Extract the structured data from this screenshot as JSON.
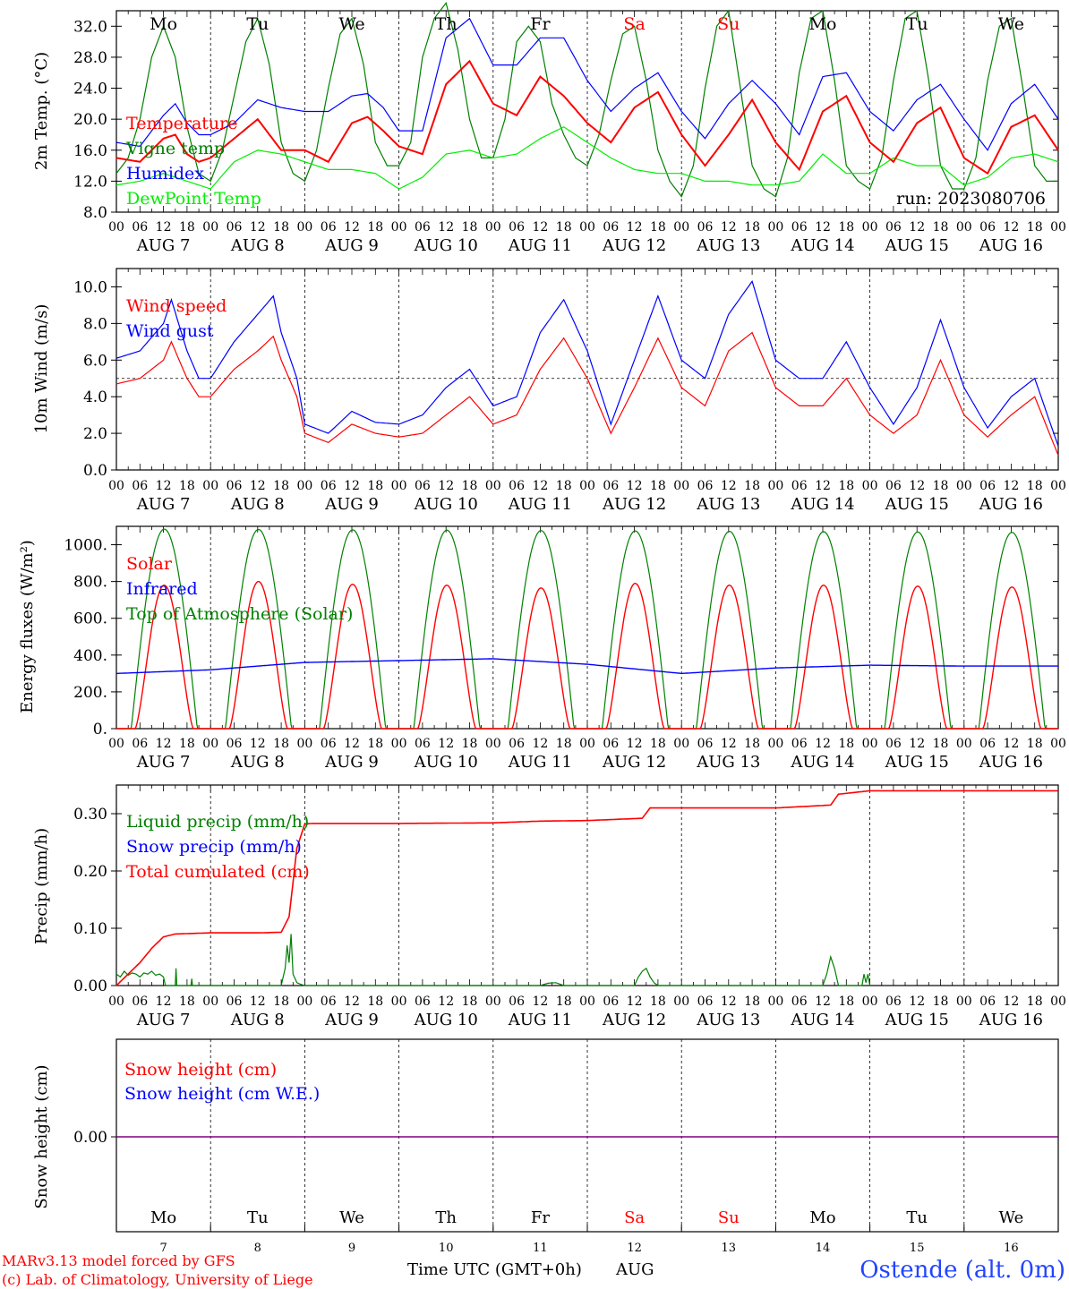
{
  "chart_data": [
    {
      "type": "line",
      "id": "temp",
      "ylabel": "2m Temp. (°C)",
      "ylim": [
        8,
        34
      ],
      "yticks": [
        "8.0",
        "12.0",
        "16.0",
        "20.0",
        "24.0",
        "28.0",
        "32.0"
      ],
      "xlim_hours": [
        0,
        240
      ],
      "annotation": "run: 2023080706",
      "legend": [
        {
          "name": "Temperature",
          "color": "#ff0000"
        },
        {
          "name": "Vigne temp",
          "color": "#008000"
        },
        {
          "name": "Humidex",
          "color": "#0000ff"
        },
        {
          "name": "DewPoint Temp",
          "color": "#00ee00"
        }
      ],
      "series": [
        {
          "name": "Temperature",
          "color": "#ff0000",
          "x": [
            0,
            6,
            12,
            15,
            18,
            21,
            24,
            30,
            36,
            42,
            48,
            54,
            60,
            64,
            68,
            72,
            78,
            84,
            90,
            96,
            102,
            108,
            114,
            120,
            126,
            132,
            138,
            144,
            150,
            156,
            162,
            168,
            174,
            180,
            186,
            192,
            198,
            204,
            210,
            216,
            222,
            228,
            234,
            240
          ],
          "y": [
            15.0,
            14.5,
            17.5,
            18,
            15.5,
            14.5,
            15.0,
            17.5,
            20.0,
            16.0,
            16.0,
            14.5,
            19.5,
            20.3,
            18.5,
            16.5,
            15.5,
            24.5,
            27.5,
            22.0,
            20.5,
            25.5,
            23.0,
            19.5,
            17.0,
            21.5,
            23.5,
            18.0,
            14.0,
            18.0,
            22.5,
            17.0,
            13.5,
            21.0,
            23.0,
            17.0,
            14.5,
            19.5,
            21.5,
            15.0,
            13.0,
            19.0,
            20.5,
            16.0
          ]
        },
        {
          "name": "Vigne temp",
          "color": "#008000",
          "x": [
            0,
            3,
            6,
            9,
            12,
            15,
            18,
            21,
            24,
            27,
            30,
            33,
            36,
            39,
            42,
            45,
            48,
            51,
            54,
            57,
            60,
            63,
            66,
            69,
            72,
            75,
            78,
            81,
            84,
            87,
            90,
            93,
            96,
            99,
            102,
            105,
            108,
            111,
            114,
            117,
            120,
            123,
            126,
            129,
            132,
            135,
            138,
            141,
            144,
            147,
            150,
            153,
            156,
            159,
            162,
            165,
            168,
            171,
            174,
            177,
            180,
            183,
            186,
            189,
            192,
            195,
            198,
            201,
            204,
            207,
            210,
            213,
            216,
            219,
            222,
            225,
            228,
            231,
            234,
            237,
            240
          ],
          "y": [
            13,
            15,
            20,
            28,
            32,
            28,
            19,
            13,
            12,
            16,
            23,
            30,
            33,
            27,
            17,
            13,
            12,
            16,
            24,
            31,
            33,
            27,
            17,
            14,
            14,
            17,
            28,
            33,
            35,
            29,
            20,
            15,
            15,
            20,
            30,
            32,
            30,
            22,
            18,
            15,
            14,
            18,
            25,
            31,
            32,
            25,
            16,
            12,
            10,
            14,
            24,
            32,
            34,
            24,
            14,
            11,
            10,
            15,
            26,
            33,
            34,
            25,
            14,
            12,
            11,
            15,
            25,
            33,
            34,
            25,
            14,
            11,
            11,
            15,
            25,
            32,
            33,
            24,
            14,
            12,
            12
          ]
        },
        {
          "name": "Humidex",
          "color": "#0000ff",
          "x": [
            0,
            6,
            12,
            15,
            18,
            21,
            24,
            30,
            36,
            42,
            48,
            54,
            60,
            64,
            68,
            72,
            78,
            84,
            90,
            96,
            102,
            108,
            114,
            120,
            126,
            132,
            138,
            144,
            150,
            156,
            162,
            168,
            174,
            180,
            186,
            192,
            198,
            204,
            210,
            216,
            222,
            228,
            234,
            240
          ],
          "y": [
            17.0,
            16.5,
            20.5,
            22.0,
            19.5,
            18.0,
            18.0,
            19.5,
            22.5,
            21.5,
            21.0,
            21.0,
            23.0,
            23.3,
            21.5,
            18.5,
            18.5,
            30.5,
            33.0,
            27.0,
            27.0,
            30.5,
            30.5,
            25.0,
            21.0,
            24.0,
            26.0,
            21.0,
            17.5,
            22.0,
            25.0,
            22.0,
            18.0,
            25.5,
            26.0,
            21.0,
            18.5,
            22.5,
            24.5,
            20.0,
            16.0,
            22.0,
            24.5,
            20.0
          ]
        },
        {
          "name": "DewPoint Temp",
          "color": "#00ee00",
          "x": [
            0,
            6,
            12,
            18,
            24,
            30,
            36,
            42,
            48,
            54,
            60,
            66,
            72,
            78,
            84,
            90,
            96,
            102,
            108,
            114,
            120,
            126,
            132,
            138,
            144,
            150,
            156,
            162,
            168,
            174,
            180,
            186,
            192,
            198,
            204,
            210,
            216,
            222,
            228,
            234,
            240
          ],
          "y": [
            11.5,
            12.0,
            13.0,
            12.0,
            11.0,
            14.5,
            16.0,
            15.5,
            14.5,
            13.5,
            13.5,
            13.0,
            11.0,
            12.5,
            15.5,
            16.0,
            15.0,
            15.5,
            17.5,
            19.0,
            17.0,
            15.0,
            13.5,
            13.0,
            13.0,
            12.0,
            12.0,
            11.5,
            11.5,
            12.0,
            15.5,
            13.0,
            13.0,
            15.0,
            14.0,
            14.0,
            11.5,
            12.5,
            15.0,
            15.5,
            14.5
          ]
        }
      ]
    },
    {
      "type": "line",
      "id": "wind",
      "ylabel": "10m Wind (m/s)",
      "ylim": [
        0,
        11
      ],
      "yticks": [
        "0.0",
        "2.0",
        "4.0",
        "6.0",
        "8.0",
        "10.0"
      ],
      "reference_line": 5.0,
      "xlim_hours": [
        0,
        240
      ],
      "legend": [
        {
          "name": "Wind speed",
          "color": "#ff0000"
        },
        {
          "name": "Wind gust",
          "color": "#0000ff"
        }
      ],
      "series": [
        {
          "name": "Wind speed",
          "color": "#ff0000",
          "x": [
            0,
            6,
            12,
            14,
            18,
            21,
            24,
            30,
            36,
            40,
            42,
            46,
            48,
            54,
            60,
            66,
            72,
            78,
            84,
            90,
            96,
            102,
            108,
            114,
            120,
            126,
            132,
            138,
            144,
            150,
            156,
            162,
            168,
            174,
            180,
            186,
            192,
            198,
            204,
            210,
            216,
            222,
            228,
            234,
            240
          ],
          "y": [
            4.7,
            5.0,
            6.0,
            7.0,
            5.0,
            4.0,
            4.0,
            5.5,
            6.5,
            7.3,
            6.0,
            4.0,
            2.0,
            1.5,
            2.5,
            2.0,
            1.8,
            2.0,
            3.0,
            4.0,
            2.5,
            3.0,
            5.5,
            7.2,
            5.0,
            2.0,
            4.5,
            7.2,
            4.5,
            3.5,
            6.5,
            7.5,
            4.5,
            3.5,
            3.5,
            5.0,
            3.0,
            2.0,
            3.0,
            6.0,
            3.0,
            1.8,
            3.0,
            4.0,
            0.8
          ]
        },
        {
          "name": "Wind gust",
          "color": "#0000ff",
          "x": [
            0,
            6,
            12,
            14,
            18,
            21,
            24,
            30,
            36,
            40,
            42,
            46,
            48,
            54,
            60,
            66,
            72,
            78,
            84,
            90,
            96,
            102,
            108,
            114,
            120,
            126,
            132,
            138,
            144,
            150,
            156,
            162,
            168,
            174,
            180,
            186,
            192,
            198,
            204,
            210,
            216,
            222,
            228,
            234,
            240
          ],
          "y": [
            6.1,
            6.5,
            8.0,
            9.3,
            6.5,
            5.0,
            5.0,
            7.0,
            8.5,
            9.5,
            7.5,
            5.0,
            2.5,
            2.0,
            3.2,
            2.6,
            2.5,
            3.0,
            4.5,
            5.5,
            3.5,
            4.0,
            7.5,
            9.3,
            6.5,
            2.5,
            6.0,
            9.5,
            6.0,
            5.0,
            8.5,
            10.3,
            6.0,
            5.0,
            5.0,
            7.0,
            4.5,
            2.5,
            4.5,
            8.2,
            4.5,
            2.3,
            4.0,
            5.0,
            1.3
          ]
        }
      ]
    },
    {
      "type": "line",
      "id": "flux",
      "ylabel": "Energy fluxes (W/m²)",
      "ylim": [
        0,
        1100
      ],
      "yticks": [
        "0.",
        "200.",
        "400.",
        "600.",
        "800.",
        "1000."
      ],
      "xlim_hours": [
        0,
        240
      ],
      "legend": [
        {
          "name": "Solar",
          "color": "#ff0000"
        },
        {
          "name": "Infrared",
          "color": "#0000ff"
        },
        {
          "name": "Top of Atmosphere (Solar)",
          "color": "#008000"
        }
      ],
      "daily_cycle": {
        "solar_peak": [
          780,
          800,
          785,
          780,
          765,
          790,
          780,
          780,
          775,
          770
        ],
        "toa_peak": [
          1085,
          1083,
          1081,
          1079,
          1077,
          1075,
          1073,
          1071,
          1069,
          1067
        ],
        "infrared": [
          300,
          320,
          360,
          370,
          380,
          350,
          300,
          330,
          345,
          340
        ]
      }
    },
    {
      "type": "line",
      "id": "precip",
      "ylabel": "Precip (mm/h)",
      "ylim": [
        0,
        0.35
      ],
      "yticks": [
        "0.00",
        "0.10",
        "0.20",
        "0.30"
      ],
      "xlim_hours": [
        0,
        240
      ],
      "legend": [
        {
          "name": "Liquid precip (mm/h)",
          "color": "#008000"
        },
        {
          "name": "Snow precip (mm/h)",
          "color": "#0000ff"
        },
        {
          "name": "Total cumulated (cm)",
          "color": "#ff0000"
        }
      ],
      "series": [
        {
          "name": "Total cumulated (cm)",
          "color": "#ff0000",
          "x": [
            0,
            3,
            6,
            9,
            12,
            15,
            24,
            36,
            42,
            44,
            46,
            48,
            50,
            72,
            96,
            108,
            120,
            134,
            136,
            144,
            168,
            182,
            184,
            192,
            216,
            240
          ],
          "y": [
            0.0,
            0.02,
            0.04,
            0.065,
            0.085,
            0.09,
            0.092,
            0.092,
            0.093,
            0.12,
            0.24,
            0.282,
            0.283,
            0.283,
            0.284,
            0.287,
            0.288,
            0.292,
            0.31,
            0.31,
            0.31,
            0.315,
            0.334,
            0.34,
            0.34,
            0.34
          ]
        },
        {
          "name": "Liquid precip (mm/h)",
          "color": "#008000",
          "x": [
            0,
            1,
            2,
            3,
            4,
            5,
            6,
            7,
            8,
            9,
            10,
            11,
            12,
            12.5,
            13,
            15,
            15.2,
            15.4,
            19,
            19.2,
            19.4,
            21,
            42,
            43,
            43.5,
            44,
            44.5,
            45,
            46,
            47,
            48,
            108,
            110,
            112,
            114,
            132,
            133,
            134,
            135,
            136,
            137,
            138,
            180,
            181,
            182,
            183,
            184,
            190,
            190.5,
            191,
            191.5,
            192
          ],
          "y": [
            0.02,
            0.015,
            0.025,
            0.018,
            0.022,
            0.02,
            0.015,
            0.022,
            0.02,
            0.025,
            0.018,
            0.02,
            0.015,
            0.0,
            0.0,
            0.0,
            0.03,
            0.0,
            0.0,
            0.012,
            0.0,
            0.0,
            0.0,
            0.03,
            0.07,
            0.04,
            0.09,
            0.02,
            0.005,
            0.002,
            0.0,
            0.0,
            0.004,
            0.005,
            0.0,
            0.0,
            0.015,
            0.025,
            0.03,
            0.015,
            0.005,
            0.0,
            0.0,
            0.02,
            0.05,
            0.03,
            0.0,
            0.0,
            0.02,
            0.005,
            0.02,
            0.0
          ]
        }
      ]
    },
    {
      "type": "line",
      "id": "snow",
      "ylabel": "Snow height (cm)",
      "yticks": [
        "0.00"
      ],
      "xlim_hours": [
        0,
        240
      ],
      "legend": [
        {
          "name": "Snow height (cm)",
          "color": "#ff0000"
        },
        {
          "name": "Snow height (cm W.E.)",
          "color": "#0000ff"
        }
      ],
      "series": [
        {
          "name": "Snow height (cm)",
          "color": "#800080",
          "x": [
            0,
            240
          ],
          "y": [
            0,
            0
          ]
        }
      ]
    }
  ],
  "days": [
    {
      "weekday": "Mo",
      "date": "AUG  7",
      "num": "7",
      "color": "#000000"
    },
    {
      "weekday": "Tu",
      "date": "AUG  8",
      "num": "8",
      "color": "#000000"
    },
    {
      "weekday": "We",
      "date": "AUG  9",
      "num": "9",
      "color": "#000000"
    },
    {
      "weekday": "Th",
      "date": "AUG 10",
      "num": "10",
      "color": "#000000"
    },
    {
      "weekday": "Fr",
      "date": "AUG 11",
      "num": "11",
      "color": "#000000"
    },
    {
      "weekday": "Sa",
      "date": "AUG 12",
      "num": "12",
      "color": "#ff0000"
    },
    {
      "weekday": "Su",
      "date": "AUG 13",
      "num": "13",
      "color": "#ff0000"
    },
    {
      "weekday": "Mo",
      "date": "AUG 14",
      "num": "14",
      "color": "#000000"
    },
    {
      "weekday": "Tu",
      "date": "AUG 15",
      "num": "15",
      "color": "#000000"
    },
    {
      "weekday": "We",
      "date": "AUG 16",
      "num": "16",
      "color": "#000000"
    }
  ],
  "hour_labels": [
    "00",
    "06",
    "12",
    "18"
  ],
  "footer": {
    "model_line": "MARv3.13 model forced by GFS",
    "copyright_line": "(c) Lab. of Climatology, University of Liege",
    "time_axis_label": "Time UTC (GMT+0h)",
    "month": "AUG",
    "station": "Ostende (alt. 0m)"
  }
}
